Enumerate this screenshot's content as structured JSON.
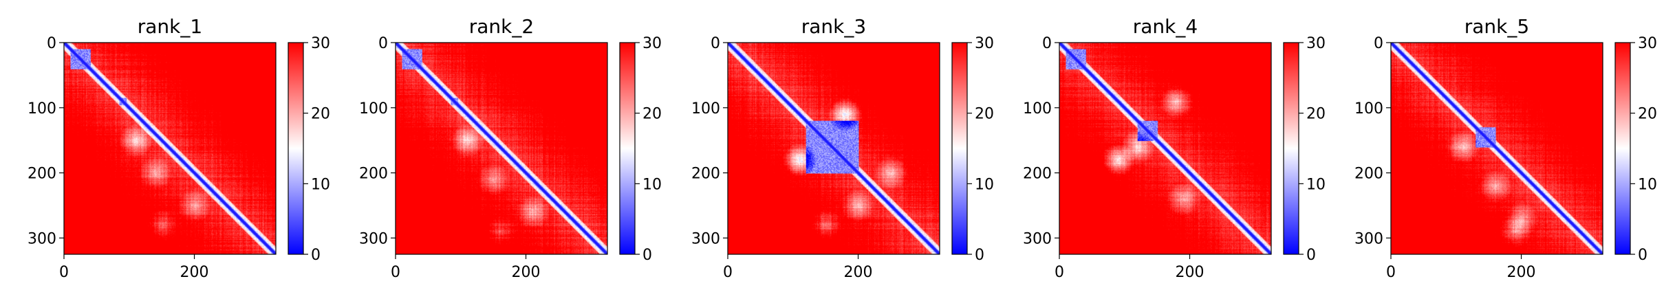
{
  "chart_data": [
    {
      "type": "heatmap",
      "title": "rank_1",
      "n": 325,
      "xticks": [
        0,
        200
      ],
      "yticks": [
        0,
        100,
        200,
        300
      ],
      "xlabel": "",
      "ylabel": "",
      "colorbar": {
        "min": 0,
        "max": 30,
        "ticks": [
          0,
          10,
          20,
          30
        ],
        "colors": [
          "#0000ff",
          "#ffffff",
          "#ff0000"
        ]
      },
      "blue_blocks": [
        [
          10,
          40
        ],
        [
          85,
          95
        ]
      ],
      "offdiag_patches": [
        [
          150,
          110,
          0.55
        ],
        [
          200,
          140,
          0.45
        ],
        [
          250,
          200,
          0.45
        ],
        [
          280,
          150,
          0.4
        ]
      ]
    },
    {
      "type": "heatmap",
      "title": "rank_2",
      "n": 325,
      "xticks": [
        0,
        200
      ],
      "yticks": [
        0,
        100,
        200,
        300
      ],
      "xlabel": "",
      "ylabel": "",
      "colorbar": {
        "min": 0,
        "max": 30,
        "ticks": [
          0,
          10,
          20,
          30
        ],
        "colors": [
          "#0000ff",
          "#ffffff",
          "#ff0000"
        ]
      },
      "blue_blocks": [
        [
          10,
          40
        ],
        [
          85,
          95
        ]
      ],
      "offdiag_patches": [
        [
          150,
          110,
          0.55
        ],
        [
          210,
          150,
          0.4
        ],
        [
          260,
          210,
          0.45
        ],
        [
          290,
          160,
          0.35
        ]
      ]
    },
    {
      "type": "heatmap",
      "title": "rank_3",
      "n": 325,
      "xticks": [
        0,
        200
      ],
      "yticks": [
        0,
        100,
        200,
        300
      ],
      "xlabel": "",
      "ylabel": "",
      "colorbar": {
        "min": 0,
        "max": 30,
        "ticks": [
          0,
          10,
          20,
          30
        ],
        "colors": [
          "#0000ff",
          "#ffffff",
          "#ff0000"
        ]
      },
      "blue_blocks": [
        [
          120,
          200
        ]
      ],
      "offdiag_patches": [
        [
          180,
          110,
          0.75
        ],
        [
          110,
          180,
          0.75
        ],
        [
          200,
          250,
          0.5
        ],
        [
          250,
          200,
          0.5
        ],
        [
          280,
          150,
          0.45
        ]
      ]
    },
    {
      "type": "heatmap",
      "title": "rank_4",
      "n": 325,
      "xticks": [
        0,
        200
      ],
      "yticks": [
        0,
        100,
        200,
        300
      ],
      "xlabel": "",
      "ylabel": "",
      "colorbar": {
        "min": 0,
        "max": 30,
        "ticks": [
          0,
          10,
          20,
          30
        ],
        "colors": [
          "#0000ff",
          "#ffffff",
          "#ff0000"
        ]
      },
      "blue_blocks": [
        [
          10,
          40
        ],
        [
          120,
          150
        ]
      ],
      "offdiag_patches": [
        [
          180,
          90,
          0.7
        ],
        [
          90,
          180,
          0.6
        ],
        [
          160,
          120,
          0.55
        ],
        [
          240,
          190,
          0.45
        ]
      ]
    },
    {
      "type": "heatmap",
      "title": "rank_5",
      "n": 325,
      "xticks": [
        0,
        200
      ],
      "yticks": [
        0,
        100,
        200,
        300
      ],
      "xlabel": "",
      "ylabel": "",
      "colorbar": {
        "min": 0,
        "max": 30,
        "ticks": [
          0,
          10,
          20,
          30
        ],
        "colors": [
          "#0000ff",
          "#ffffff",
          "#ff0000"
        ]
      },
      "blue_blocks": [
        [
          130,
          160
        ]
      ],
      "offdiag_patches": [
        [
          160,
          110,
          0.5
        ],
        [
          220,
          160,
          0.45
        ],
        [
          270,
          200,
          0.45
        ],
        [
          290,
          190,
          0.4
        ]
      ]
    }
  ]
}
